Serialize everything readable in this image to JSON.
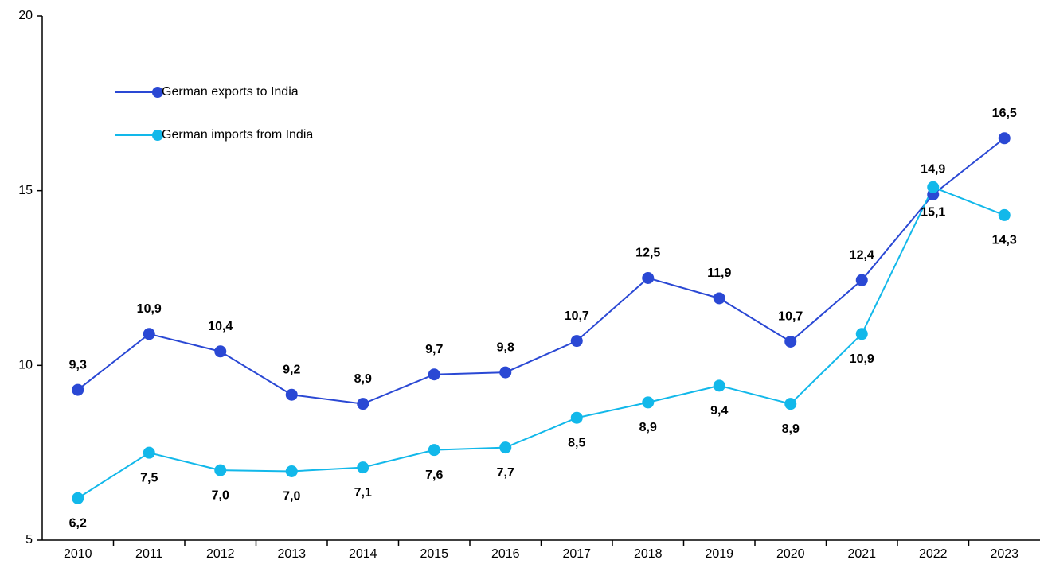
{
  "chart_data": {
    "type": "line",
    "categories": [
      "2010",
      "2011",
      "2012",
      "2013",
      "2014",
      "2015",
      "2016",
      "2017",
      "2018",
      "2019",
      "2020",
      "2021",
      "2022",
      "2023"
    ],
    "series": [
      {
        "name": "German exports to India",
        "color": "#2a48d4",
        "values": [
          9.3,
          10.9,
          10.4,
          9.16,
          8.9,
          9.74,
          9.8,
          10.7,
          12.5,
          11.92,
          10.68,
          12.44,
          14.89,
          16.5
        ],
        "value_labels": [
          "9,3",
          "10,9",
          "10,4",
          "9,2",
          "8,9",
          "9,7",
          "9,8",
          "10,7",
          "12,5",
          "11,9",
          "10,7",
          "12,4",
          "14,9",
          "16,5"
        ]
      },
      {
        "name": "German imports from India",
        "color": "#12b8ea",
        "values": [
          6.2,
          7.5,
          7.0,
          6.97,
          7.08,
          7.58,
          7.65,
          8.5,
          8.94,
          9.42,
          8.9,
          10.9,
          15.1,
          14.3
        ],
        "value_labels": [
          "6,2",
          "7,5",
          "7,0",
          "7,0",
          "7,1",
          "7,6",
          "7,7",
          "8,5",
          "8,9",
          "9,4",
          "8,9",
          "10,9",
          "15,1",
          "14,3"
        ]
      }
    ],
    "ylim": [
      5,
      20
    ],
    "yticks": [
      5,
      10,
      15,
      20
    ],
    "legend": "upper left"
  }
}
